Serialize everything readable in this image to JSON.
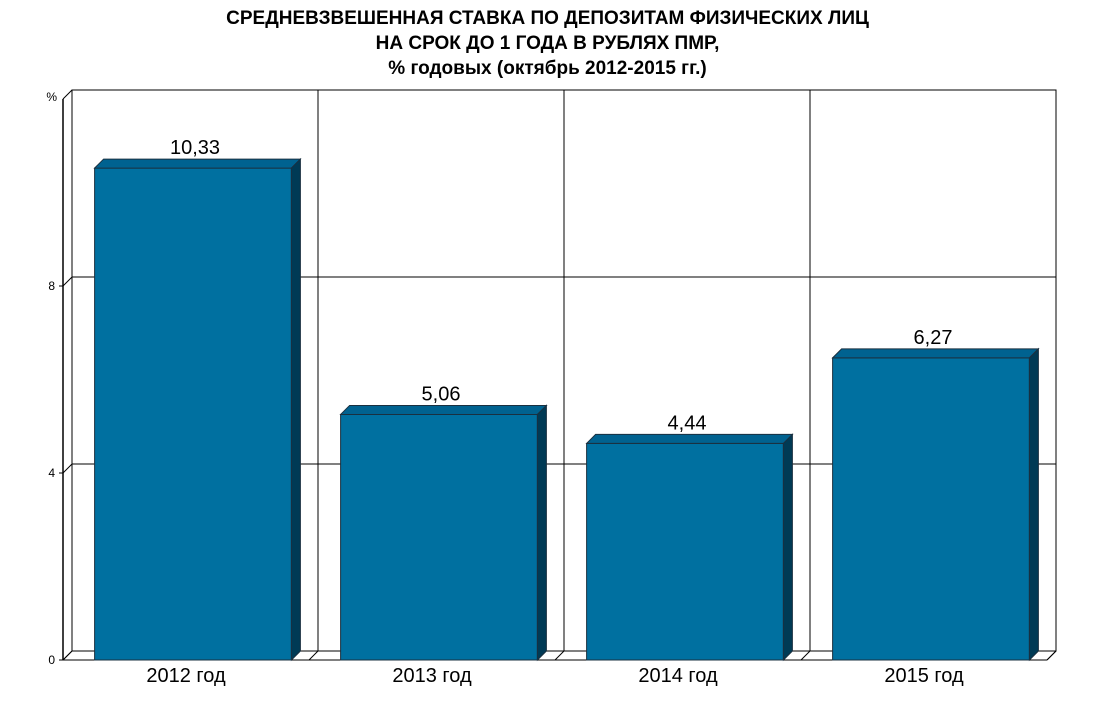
{
  "chart_data": {
    "type": "bar",
    "title_lines": [
      "СРЕДНЕВЗВЕШЕННАЯ СТАВКА ПО ДЕПОЗИТАМ ФИЗИЧЕСКИХ ЛИЦ",
      "НА СРОК ДО 1 ГОДА В РУБЛЯХ ПМР,",
      "% годовых (октябрь 2012-2015 гг.)"
    ],
    "ylabel": "%",
    "categories": [
      "2012 год",
      "2013 год",
      "2014 год",
      "2015 год"
    ],
    "values": [
      10.33,
      5.06,
      4.44,
      6.27
    ],
    "value_labels": [
      "10,33",
      "5,06",
      "4,44",
      "6,27"
    ],
    "y_ticks": [
      0,
      4,
      8
    ],
    "ylim": [
      0,
      12
    ],
    "grid": true,
    "bar_color": "#0070A0",
    "bar_top_color": "#006290",
    "bar_side_color": "#003A55"
  }
}
